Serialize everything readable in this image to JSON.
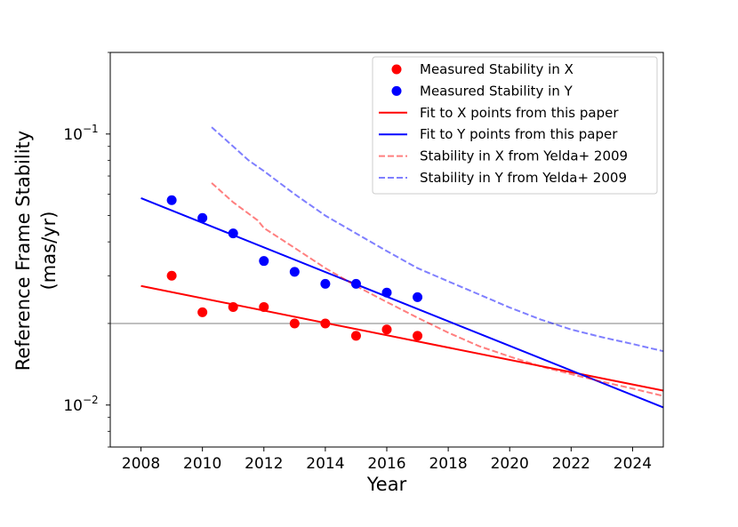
{
  "chart_data": {
    "type": "scatter+line",
    "xlabel": "Year",
    "ylabel_line1": "Reference Frame Stability",
    "ylabel_line2": "(mas/yr)",
    "yscale": "log",
    "xlim": [
      2007,
      2025
    ],
    "ylim": [
      0.007,
      0.2
    ],
    "xticks": [
      2008,
      2010,
      2012,
      2014,
      2016,
      2018,
      2020,
      2022,
      2024
    ],
    "xtick_labels": [
      "2008",
      "2010",
      "2012",
      "2014",
      "2016",
      "2018",
      "2020",
      "2022",
      "2024"
    ],
    "ytick_labels": [
      {
        "value": 0.1,
        "base": "10",
        "exp": "−1"
      },
      {
        "value": 0.01,
        "base": "10",
        "exp": "−2"
      }
    ],
    "reference_line": {
      "y": 0.02,
      "color": "#bfbfbf"
    },
    "scatter_series": [
      {
        "name": "Measured Stability in X",
        "color": "#ff0000",
        "x": [
          2009,
          2010,
          2011,
          2012,
          2013,
          2014,
          2015,
          2016,
          2017
        ],
        "y": [
          0.03,
          0.022,
          0.023,
          0.023,
          0.02,
          0.02,
          0.018,
          0.019,
          0.018
        ]
      },
      {
        "name": "Measured Stability in Y",
        "color": "#0000ff",
        "x": [
          2009,
          2010,
          2011,
          2012,
          2013,
          2014,
          2015,
          2016,
          2017
        ],
        "y": [
          0.057,
          0.049,
          0.043,
          0.034,
          0.031,
          0.028,
          0.028,
          0.026,
          0.025
        ]
      }
    ],
    "line_series": [
      {
        "name": "Fit to X points from this paper",
        "color": "#ff0000",
        "dashed": false,
        "opacity": 1,
        "x": [
          2008,
          2025
        ],
        "y": [
          0.0275,
          0.0113
        ]
      },
      {
        "name": "Fit to Y points from this paper",
        "color": "#0000ff",
        "dashed": false,
        "opacity": 1,
        "x": [
          2008,
          2025
        ],
        "y": [
          0.058,
          0.0098
        ]
      },
      {
        "name": "Stability in X from Yelda+ 2009",
        "color": "#ff0000",
        "dashed": true,
        "opacity": 0.5,
        "x": [
          2010.3,
          2011,
          2011.8,
          2012,
          2013,
          2014,
          2015,
          2016,
          2017,
          2018,
          2019,
          2020,
          2021,
          2022,
          2023,
          2024,
          2025
        ],
        "y": [
          0.066,
          0.056,
          0.048,
          0.045,
          0.038,
          0.032,
          0.0275,
          0.024,
          0.021,
          0.0185,
          0.0165,
          0.0151,
          0.0139,
          0.013,
          0.0122,
          0.0115,
          0.0108
        ]
      },
      {
        "name": "Stability in Y from Yelda+ 2009",
        "color": "#0000ff",
        "dashed": true,
        "opacity": 0.5,
        "x": [
          2010.3,
          2011,
          2011.5,
          2012,
          2013,
          2014,
          2015,
          2016,
          2017,
          2018,
          2019,
          2020,
          2021,
          2022,
          2023,
          2024,
          2025
        ],
        "y": [
          0.106,
          0.09,
          0.08,
          0.073,
          0.06,
          0.05,
          0.043,
          0.037,
          0.032,
          0.0286,
          0.0256,
          0.0229,
          0.0207,
          0.019,
          0.0178,
          0.0168,
          0.0158
        ]
      }
    ],
    "legend": {
      "placement": "top-right",
      "entries": [
        {
          "label": "Measured Stability in X",
          "kind": "marker",
          "color": "#ff0000",
          "opacity": 1
        },
        {
          "label": "Measured Stability in Y",
          "kind": "marker",
          "color": "#0000ff",
          "opacity": 1
        },
        {
          "label": "Fit to X points from this paper",
          "kind": "line",
          "color": "#ff0000",
          "opacity": 1
        },
        {
          "label": "Fit to Y points from this paper",
          "kind": "line",
          "color": "#0000ff",
          "opacity": 1
        },
        {
          "label": "Stability in X from Yelda+ 2009",
          "kind": "dashed",
          "color": "#ff0000",
          "opacity": 0.5
        },
        {
          "label": "Stability in Y from Yelda+ 2009",
          "kind": "dashed",
          "color": "#0000ff",
          "opacity": 0.5
        }
      ]
    }
  }
}
